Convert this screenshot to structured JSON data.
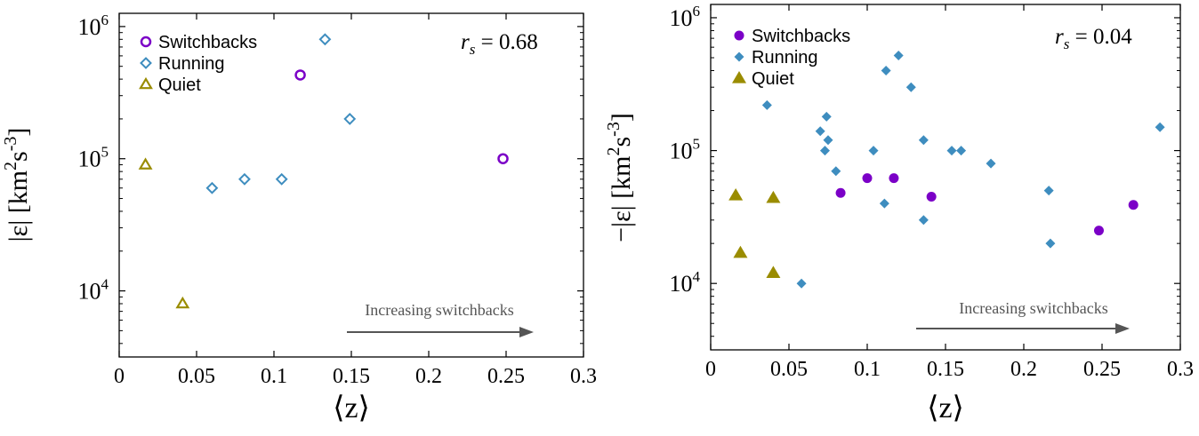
{
  "colors": {
    "switchbacks": "#7B00C7",
    "running": "#3E8DBF",
    "quiet": "#9A8C00",
    "arrow": "#555555",
    "axis": "#000000"
  },
  "chart_data": [
    {
      "type": "scatter",
      "ylabel_parts": [
        "|ε| [km",
        "2",
        "s",
        "-3",
        "]"
      ],
      "xlabel": "⟨z⟩",
      "rs_label": "r",
      "rs_sub": "s",
      "rs_value": " = 0.68",
      "annotation": "Increasing switchbacks",
      "xlim": [
        0,
        0.3
      ],
      "ylim_log10": [
        3.5,
        6.1
      ],
      "y_scale": "log",
      "x_ticks": [
        0,
        0.05,
        0.1,
        0.15,
        0.2,
        0.25,
        0.3
      ],
      "x_tick_labels": [
        "0",
        "0.05",
        "0.1",
        "0.15",
        "0.2",
        "0.25",
        "0.3"
      ],
      "y_tick_labels": [
        {
          "base": "10",
          "exp": "4",
          "value": 10000
        },
        {
          "base": "10",
          "exp": "5",
          "value": 100000
        },
        {
          "base": "10",
          "exp": "6",
          "value": 1000000
        }
      ],
      "marker_style": "hollow",
      "legend_placement": "top-left",
      "series": [
        {
          "name": "Switchbacks",
          "marker": "circle",
          "points": [
            [
              0.117,
              430000
            ],
            [
              0.248,
              100000
            ]
          ]
        },
        {
          "name": "Running",
          "marker": "diamond",
          "points": [
            [
              0.06,
              60000
            ],
            [
              0.081,
              70000
            ],
            [
              0.105,
              70000
            ],
            [
              0.133,
              800000
            ],
            [
              0.149,
              200000
            ]
          ]
        },
        {
          "name": "Quiet",
          "marker": "triangle",
          "points": [
            [
              0.017,
              90000
            ],
            [
              0.041,
              8000
            ]
          ]
        }
      ]
    },
    {
      "type": "scatter",
      "ylabel_parts": [
        "−|ε| [km",
        "2",
        "s",
        "-3",
        "]"
      ],
      "xlabel": "⟨z⟩",
      "rs_label": "r",
      "rs_sub": "s",
      "rs_value": " = 0.04",
      "annotation": "Increasing switchbacks",
      "xlim": [
        0,
        0.3
      ],
      "ylim_log10": [
        3.5,
        6.1
      ],
      "y_scale": "log",
      "x_ticks": [
        0,
        0.05,
        0.1,
        0.15,
        0.2,
        0.25,
        0.3
      ],
      "x_tick_labels": [
        "0",
        "0.05",
        "0.1",
        "0.15",
        "0.2",
        "0.25",
        "0.3"
      ],
      "y_tick_labels": [
        {
          "base": "10",
          "exp": "4",
          "value": 10000
        },
        {
          "base": "10",
          "exp": "5",
          "value": 100000
        },
        {
          "base": "10",
          "exp": "6",
          "value": 1000000
        }
      ],
      "marker_style": "filled",
      "legend_placement": "top-left",
      "series": [
        {
          "name": "Switchbacks",
          "marker": "circle",
          "points": [
            [
              0.083,
              48000
            ],
            [
              0.1,
              62000
            ],
            [
              0.117,
              62000
            ],
            [
              0.141,
              45000
            ],
            [
              0.248,
              25000
            ],
            [
              0.27,
              39000
            ]
          ]
        },
        {
          "name": "Running",
          "marker": "diamond",
          "points": [
            [
              0.036,
              220000
            ],
            [
              0.058,
              10000
            ],
            [
              0.07,
              140000
            ],
            [
              0.073,
              100000
            ],
            [
              0.074,
              180000
            ],
            [
              0.075,
              120000
            ],
            [
              0.08,
              70000
            ],
            [
              0.104,
              100000
            ],
            [
              0.111,
              40000
            ],
            [
              0.112,
              400000
            ],
            [
              0.12,
              520000
            ],
            [
              0.128,
              300000
            ],
            [
              0.136,
              120000
            ],
            [
              0.136,
              30000
            ],
            [
              0.154,
              100000
            ],
            [
              0.16,
              100000
            ],
            [
              0.179,
              80000
            ],
            [
              0.216,
              50000
            ],
            [
              0.217,
              20000
            ],
            [
              0.287,
              150000
            ]
          ]
        },
        {
          "name": "Quiet",
          "marker": "triangle",
          "points": [
            [
              0.016,
              46000
            ],
            [
              0.019,
              17000
            ],
            [
              0.04,
              44000
            ],
            [
              0.04,
              12000
            ]
          ]
        }
      ]
    }
  ]
}
